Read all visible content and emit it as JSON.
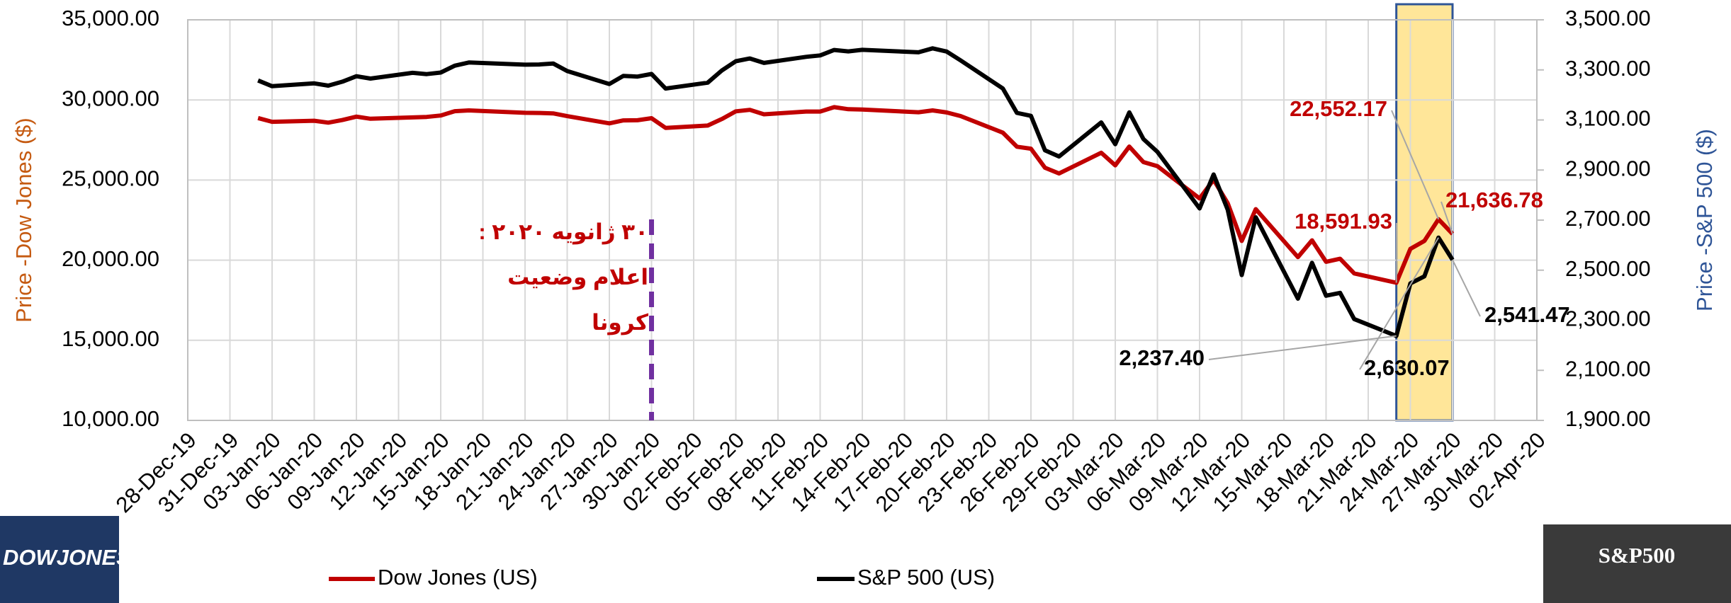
{
  "chart_data": {
    "type": "line",
    "x": [
      "2020-01-02",
      "2020-01-03",
      "2020-01-06",
      "2020-01-07",
      "2020-01-08",
      "2020-01-09",
      "2020-01-10",
      "2020-01-13",
      "2020-01-14",
      "2020-01-15",
      "2020-01-16",
      "2020-01-17",
      "2020-01-21",
      "2020-01-22",
      "2020-01-23",
      "2020-01-24",
      "2020-01-27",
      "2020-01-28",
      "2020-01-29",
      "2020-01-30",
      "2020-01-31",
      "2020-02-03",
      "2020-02-04",
      "2020-02-05",
      "2020-02-06",
      "2020-02-07",
      "2020-02-10",
      "2020-02-11",
      "2020-02-12",
      "2020-02-13",
      "2020-02-14",
      "2020-02-18",
      "2020-02-19",
      "2020-02-20",
      "2020-02-21",
      "2020-02-24",
      "2020-02-25",
      "2020-02-26",
      "2020-02-27",
      "2020-02-28",
      "2020-03-02",
      "2020-03-03",
      "2020-03-04",
      "2020-03-05",
      "2020-03-06",
      "2020-03-09",
      "2020-03-10",
      "2020-03-11",
      "2020-03-12",
      "2020-03-13",
      "2020-03-16",
      "2020-03-17",
      "2020-03-18",
      "2020-03-19",
      "2020-03-20",
      "2020-03-23",
      "2020-03-24",
      "2020-03-25",
      "2020-03-26",
      "2020-03-27"
    ],
    "series": [
      {
        "name": "Dow Jones (US)",
        "color": "#c00000",
        "values": [
          28868.8,
          28634.88,
          28703.38,
          28583.68,
          28745.09,
          28956.9,
          28823.77,
          28907.05,
          28939.67,
          29030.22,
          29297.64,
          29348.1,
          29196.04,
          29186.27,
          29160.09,
          28989.73,
          28535.8,
          28722.85,
          28734.45,
          28859.44,
          28256.03,
          28399.81,
          28807.63,
          29290.85,
          29379.77,
          29102.51,
          29276.82,
          29276.34,
          29551.42,
          29423.31,
          29398.08,
          29232.19,
          29348.03,
          29219.98,
          28992.41,
          27960.8,
          27081.36,
          26957.59,
          25766.64,
          25409.36,
          26703.32,
          25917.41,
          27090.86,
          26121.28,
          25864.78,
          23851.02,
          25018.16,
          23553.22,
          21200.62,
          23185.62,
          20188.52,
          21237.38,
          19898.92,
          20087.19,
          19173.98,
          18591.93,
          20704.91,
          21200.55,
          22552.17,
          21636.78
        ],
        "value_labels": [
          null,
          null,
          null,
          null,
          null,
          null,
          null,
          null,
          null,
          null,
          null,
          null,
          null,
          null,
          null,
          null,
          null,
          null,
          null,
          null,
          null,
          null,
          null,
          null,
          null,
          null,
          null,
          null,
          null,
          null,
          null,
          null,
          null,
          null,
          null,
          null,
          null,
          null,
          null,
          null,
          null,
          null,
          null,
          null,
          null,
          null,
          null,
          null,
          null,
          null,
          null,
          null,
          null,
          null,
          null,
          "18,591.93",
          null,
          null,
          "22,552.17",
          "21,636.78"
        ]
      },
      {
        "name": "S&P 500 (US)",
        "color": "#000000",
        "axis": "y2",
        "values": [
          3257.85,
          3234.85,
          3246.28,
          3237.18,
          3253.05,
          3274.7,
          3265.35,
          3288.13,
          3283.15,
          3289.29,
          3316.81,
          3329.62,
          3320.79,
          3321.75,
          3325.54,
          3295.47,
          3243.63,
          3276.24,
          3273.4,
          3283.66,
          3225.52,
          3248.92,
          3297.59,
          3334.69,
          3345.78,
          3327.71,
          3352.09,
          3357.75,
          3379.45,
          3373.94,
          3380.16,
          3370.29,
          3386.15,
          3373.23,
          3337.75,
          3225.89,
          3128.21,
          3116.39,
          2978.76,
          2954.22,
          3090.23,
          3003.37,
          3130.12,
          3023.94,
          2972.37,
          2746.56,
          2882.23,
          2741.38,
          2480.64,
          2711.02,
          2386.13,
          2529.19,
          2398.1,
          2409.39,
          2304.92,
          2237.4,
          2447.33,
          2475.56,
          2630.07,
          2541.47
        ],
        "value_labels": [
          null,
          null,
          null,
          null,
          null,
          null,
          null,
          null,
          null,
          null,
          null,
          null,
          null,
          null,
          null,
          null,
          null,
          null,
          null,
          null,
          null,
          null,
          null,
          null,
          null,
          null,
          null,
          null,
          null,
          null,
          null,
          null,
          null,
          null,
          null,
          null,
          null,
          null,
          null,
          null,
          null,
          null,
          null,
          null,
          null,
          null,
          null,
          null,
          null,
          null,
          null,
          null,
          null,
          null,
          null,
          "2,237.40",
          null,
          null,
          "2,630.07",
          "2,541.47"
        ]
      }
    ],
    "y_label": "Price -Dow Jones ($)",
    "y_label_color": "#c55a11",
    "y2_label": "Price -S&P 500 ($)",
    "y2_label_color": "#2f5597",
    "xlim": [
      "2019-12-28",
      "2020-04-02"
    ],
    "xticks": [
      {
        "value": "2019-12-28",
        "label": "28-Dec-19"
      },
      {
        "value": "2019-12-31",
        "label": "31-Dec-19"
      },
      {
        "value": "2020-01-03",
        "label": "03-Jan-20"
      },
      {
        "value": "2020-01-06",
        "label": "06-Jan-20"
      },
      {
        "value": "2020-01-09",
        "label": "09-Jan-20"
      },
      {
        "value": "2020-01-12",
        "label": "12-Jan-20"
      },
      {
        "value": "2020-01-15",
        "label": "15-Jan-20"
      },
      {
        "value": "2020-01-18",
        "label": "18-Jan-20"
      },
      {
        "value": "2020-01-21",
        "label": "21-Jan-20"
      },
      {
        "value": "2020-01-24",
        "label": "24-Jan-20"
      },
      {
        "value": "2020-01-27",
        "label": "27-Jan-20"
      },
      {
        "value": "2020-01-30",
        "label": "30-Jan-20"
      },
      {
        "value": "2020-02-02",
        "label": "02-Feb-20"
      },
      {
        "value": "2020-02-05",
        "label": "05-Feb-20"
      },
      {
        "value": "2020-02-08",
        "label": "08-Feb-20"
      },
      {
        "value": "2020-02-11",
        "label": "11-Feb-20"
      },
      {
        "value": "2020-02-14",
        "label": "14-Feb-20"
      },
      {
        "value": "2020-02-17",
        "label": "17-Feb-20"
      },
      {
        "value": "2020-02-20",
        "label": "20-Feb-20"
      },
      {
        "value": "2020-02-23",
        "label": "23-Feb-20"
      },
      {
        "value": "2020-02-26",
        "label": "26-Feb-20"
      },
      {
        "value": "2020-02-29",
        "label": "29-Feb-20"
      },
      {
        "value": "2020-03-03",
        "label": "03-Mar-20"
      },
      {
        "value": "2020-03-06",
        "label": "06-Mar-20"
      },
      {
        "value": "2020-03-09",
        "label": "09-Mar-20"
      },
      {
        "value": "2020-03-12",
        "label": "12-Mar-20"
      },
      {
        "value": "2020-03-15",
        "label": "15-Mar-20"
      },
      {
        "value": "2020-03-18",
        "label": "18-Mar-20"
      },
      {
        "value": "2020-03-21",
        "label": "21-Mar-20"
      },
      {
        "value": "2020-03-24",
        "label": "24-Mar-20"
      },
      {
        "value": "2020-03-27",
        "label": "27-Mar-20"
      },
      {
        "value": "2020-03-30",
        "label": "30-Mar-20"
      },
      {
        "value": "2020-04-02",
        "label": "02-Apr-20"
      }
    ],
    "ylim": [
      10000,
      35000
    ],
    "yticks": [
      {
        "value": 10000,
        "label": "10,000.00"
      },
      {
        "value": 15000,
        "label": "15,000.00"
      },
      {
        "value": 20000,
        "label": "20,000.00"
      },
      {
        "value": 25000,
        "label": "25,000.00"
      },
      {
        "value": 30000,
        "label": "30,000.00"
      },
      {
        "value": 35000,
        "label": "35,000.00"
      }
    ],
    "y2lim": [
      1900,
      3500
    ],
    "y2ticks": [
      {
        "value": 1900,
        "label": "1,900.00"
      },
      {
        "value": 2100,
        "label": "2,100.00"
      },
      {
        "value": 2300,
        "label": "2,300.00"
      },
      {
        "value": 2500,
        "label": "2,500.00"
      },
      {
        "value": 2700,
        "label": "2,700.00"
      },
      {
        "value": 2900,
        "label": "2,900.00"
      },
      {
        "value": 3100,
        "label": "3,100.00"
      },
      {
        "value": 3300,
        "label": "3,300.00"
      },
      {
        "value": 3500,
        "label": "3,500.00"
      }
    ],
    "grid": true,
    "legend": "bottom",
    "vline": {
      "x": "2020-01-30",
      "color": "#7030a0"
    },
    "highlight": {
      "x": [
        "2020-03-23",
        "2020-03-27"
      ],
      "color": "#ffe699",
      "edge": "#2f5597"
    },
    "annotation": {
      "lines": [
        "۳۰ ژانویه ۲۰۲۰ :",
        "اعلام وضعیت",
        "کرونا"
      ],
      "color": "#c00000"
    },
    "logos": [
      "DOWJONES",
      "S&P500"
    ]
  }
}
